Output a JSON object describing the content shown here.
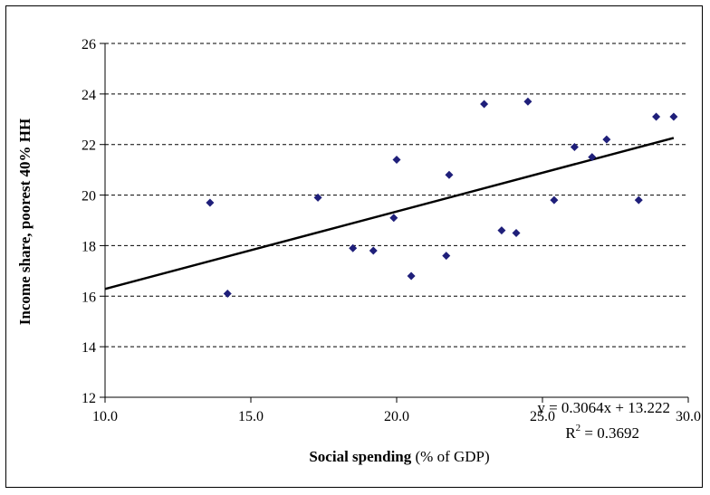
{
  "chart_data": {
    "type": "scatter",
    "xlabel_bold": "Social spending",
    "xlabel_rest": " (% of GDP)",
    "ylabel": "Income share, poorest 40% HH",
    "xlim": [
      10.0,
      30.0
    ],
    "ylim": [
      12,
      26
    ],
    "x_ticks": [
      "10.0",
      "15.0",
      "20.0",
      "25.0",
      "30.0"
    ],
    "y_ticks": [
      "12",
      "14",
      "16",
      "18",
      "20",
      "22",
      "24",
      "26"
    ],
    "grid": "horizontal-dashed",
    "marker_color": "#1F1F7A",
    "points": [
      {
        "x": 13.6,
        "y": 19.7
      },
      {
        "x": 14.2,
        "y": 16.1
      },
      {
        "x": 17.3,
        "y": 19.9
      },
      {
        "x": 18.5,
        "y": 17.9
      },
      {
        "x": 19.2,
        "y": 17.8
      },
      {
        "x": 19.9,
        "y": 19.1
      },
      {
        "x": 20.0,
        "y": 21.4
      },
      {
        "x": 20.5,
        "y": 16.8
      },
      {
        "x": 21.7,
        "y": 17.6
      },
      {
        "x": 21.8,
        "y": 20.8
      },
      {
        "x": 23.0,
        "y": 23.6
      },
      {
        "x": 23.6,
        "y": 18.6
      },
      {
        "x": 24.1,
        "y": 18.5
      },
      {
        "x": 24.5,
        "y": 23.7
      },
      {
        "x": 25.4,
        "y": 19.8
      },
      {
        "x": 26.1,
        "y": 21.9
      },
      {
        "x": 26.7,
        "y": 21.5
      },
      {
        "x": 27.2,
        "y": 22.2
      },
      {
        "x": 28.3,
        "y": 19.8
      },
      {
        "x": 28.9,
        "y": 23.1
      },
      {
        "x": 29.5,
        "y": 23.1
      }
    ],
    "trendline": {
      "slope": 0.3064,
      "intercept": 13.222,
      "x_range": [
        10.0,
        29.5
      ],
      "equation_label": "y = 0.3064x + 13.222",
      "r2_prefix": "R",
      "r2_sup": "2",
      "r2_value": " = 0.3692"
    }
  }
}
